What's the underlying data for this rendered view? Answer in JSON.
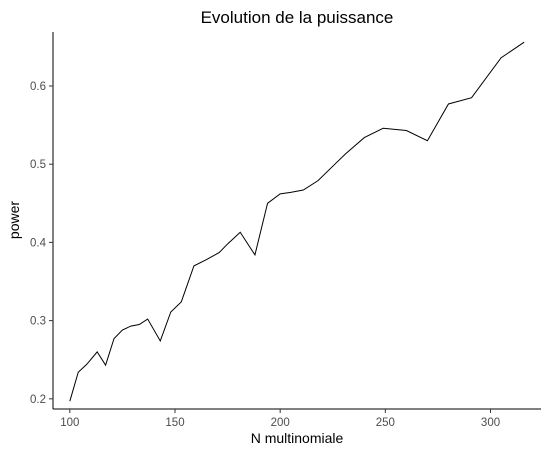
{
  "chart_data": {
    "type": "line",
    "title": "Evolution de la puissance",
    "xlabel": "N multinomiale",
    "ylabel": "power",
    "xlim": [
      92,
      324
    ],
    "ylim": [
      0.187,
      0.669
    ],
    "xticks": [
      100,
      150,
      200,
      250,
      300
    ],
    "yticks": [
      0.2,
      0.3,
      0.4,
      0.5,
      0.6
    ],
    "ytick_labels": [
      "0.2",
      "0.3",
      "0.4",
      "0.5",
      "0.6"
    ],
    "grid": false,
    "legend": "none",
    "series": [
      {
        "color": "#000000",
        "x": [
          100,
          104,
          108,
          113,
          117,
          121,
          125,
          129,
          133,
          137,
          143,
          148,
          153,
          159,
          165,
          171,
          175,
          181,
          188,
          194,
          200,
          205,
          211,
          218,
          226,
          231,
          240,
          249,
          260,
          270,
          280,
          291,
          305,
          316
        ],
        "y": [
          0.197,
          0.234,
          0.244,
          0.26,
          0.243,
          0.277,
          0.288,
          0.293,
          0.295,
          0.302,
          0.274,
          0.311,
          0.324,
          0.37,
          0.378,
          0.387,
          0.398,
          0.413,
          0.384,
          0.45,
          0.462,
          0.464,
          0.467,
          0.479,
          0.5,
          0.513,
          0.534,
          0.546,
          0.543,
          0.53,
          0.577,
          0.585,
          0.636,
          0.656
        ]
      }
    ]
  }
}
